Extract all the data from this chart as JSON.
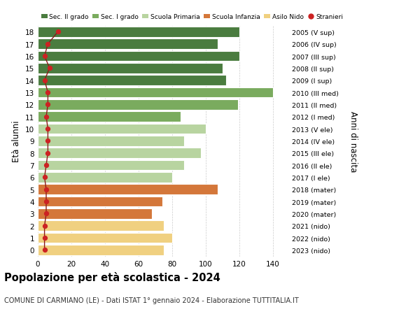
{
  "ages": [
    18,
    17,
    16,
    15,
    14,
    13,
    12,
    11,
    10,
    9,
    8,
    7,
    6,
    5,
    4,
    3,
    2,
    1,
    0
  ],
  "bar_values": [
    120,
    107,
    120,
    110,
    112,
    140,
    119,
    85,
    100,
    87,
    97,
    87,
    80,
    107,
    74,
    68,
    75,
    80,
    75
  ],
  "stranieri_values": [
    12,
    6,
    4,
    7,
    4,
    6,
    6,
    5,
    6,
    6,
    6,
    5,
    4,
    5,
    5,
    5,
    4,
    4,
    4
  ],
  "right_labels": [
    "2005 (V sup)",
    "2006 (IV sup)",
    "2007 (III sup)",
    "2008 (II sup)",
    "2009 (I sup)",
    "2010 (III med)",
    "2011 (II med)",
    "2012 (I med)",
    "2013 (V ele)",
    "2014 (IV ele)",
    "2015 (III ele)",
    "2016 (II ele)",
    "2017 (I ele)",
    "2018 (mater)",
    "2019 (mater)",
    "2020 (mater)",
    "2021 (nido)",
    "2022 (nido)",
    "2023 (nido)"
  ],
  "bar_colors": [
    "#4a7c3f",
    "#4a7c3f",
    "#4a7c3f",
    "#4a7c3f",
    "#4a7c3f",
    "#7aab5e",
    "#7aab5e",
    "#7aab5e",
    "#b8d4a0",
    "#b8d4a0",
    "#b8d4a0",
    "#b8d4a0",
    "#b8d4a0",
    "#d4773a",
    "#d4773a",
    "#d4773a",
    "#f0d080",
    "#f0d080",
    "#f0d080"
  ],
  "legend_labels": [
    "Sec. II grado",
    "Sec. I grado",
    "Scuola Primaria",
    "Scuola Infanzia",
    "Asilo Nido",
    "Stranieri"
  ],
  "legend_colors": [
    "#4a7c3f",
    "#7aab5e",
    "#b8d4a0",
    "#d4773a",
    "#f0d080",
    "#cc2222"
  ],
  "ylabel": "Età alunni",
  "ylabel_right": "Anni di nascita",
  "title": "Popolazione per età scolastica - 2024",
  "subtitle": "COMUNE DI CARMIANO (LE) - Dati ISTAT 1° gennaio 2024 - Elaborazione TUTTITALIA.IT",
  "xlim": [
    0,
    150
  ],
  "xticks": [
    0,
    20,
    40,
    60,
    80,
    100,
    120,
    140
  ],
  "bg_color": "#ffffff",
  "stranieri_color": "#cc2222",
  "stranieri_line_color": "#8b1a1a"
}
